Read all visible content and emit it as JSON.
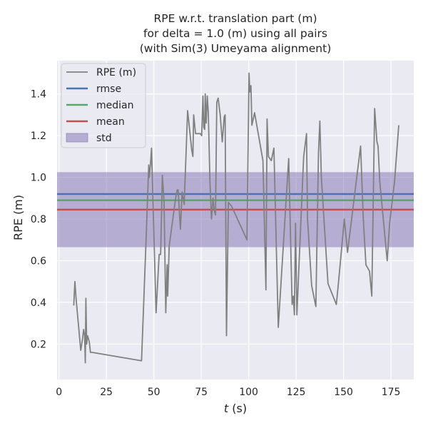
{
  "chart_data": {
    "type": "line",
    "title_lines": [
      "RPE w.r.t. translation part (m)",
      "for delta = 1.0 (m) using all pairs",
      "(with Sim(3) Umeyama alignment)"
    ],
    "xlabel_italic": "t",
    "xlabel_rest": " (s)",
    "ylabel": "RPE (m)",
    "xlim": [
      -1,
      187
    ],
    "ylim": [
      0.03,
      1.56
    ],
    "x_ticks": [
      0,
      25,
      50,
      75,
      100,
      125,
      150,
      175
    ],
    "y_ticks": [
      0.2,
      0.4,
      0.6,
      0.8,
      1.0,
      1.2,
      1.4
    ],
    "y_tick_labels": [
      "0.2",
      "0.4",
      "0.6",
      "0.8",
      "1.0",
      "1.2",
      "1.4"
    ],
    "grid": true,
    "legend_position": "top-left",
    "legend": [
      {
        "label": "RPE (m)",
        "color": "#808080",
        "kind": "line"
      },
      {
        "label": "rmse",
        "color": "#4c72b0",
        "kind": "line"
      },
      {
        "label": "median",
        "color": "#55a868",
        "kind": "line"
      },
      {
        "label": "mean",
        "color": "#c44e52",
        "kind": "line"
      },
      {
        "label": "std",
        "color": "#8172b2",
        "kind": "patch"
      }
    ],
    "stats": {
      "rmse": 0.92,
      "median": 0.89,
      "mean": 0.845,
      "std_band": [
        0.665,
        1.025
      ]
    },
    "series": [
      {
        "name": "RPE (m)",
        "color": "#808080",
        "x": [
          7.8,
          8.4,
          9.0,
          11.5,
          12.5,
          13.0,
          13.5,
          13.9,
          14.2,
          14.6,
          15.1,
          16.0,
          16.6,
          17.5,
          43.5,
          46.0,
          47.3,
          47.6,
          48.2,
          48.8,
          51.2,
          52.8,
          53.6,
          54.5,
          55.4,
          56.3,
          57.0,
          57.3,
          58.1,
          61.5,
          62.3,
          62.8,
          64.0,
          64.9,
          66.0,
          67.8,
          70.0,
          70.6,
          71.0,
          72.0,
          74.5,
          75.2,
          75.9,
          76.3,
          76.8,
          77.1,
          77.6,
          78.2,
          78.7,
          79.6,
          80.4,
          81.2,
          81.9,
          82.5,
          83.2,
          83.9,
          85.0,
          86.1,
          87.1,
          87.6,
          88.3,
          89.3,
          91.1,
          99.1,
          100.2,
          100.6,
          101.2,
          101.7,
          103.1,
          107.5,
          109.1,
          109.7,
          110.4,
          111.9,
          113.3,
          115.6,
          121.1,
          122.9,
          123.5,
          124.1,
          124.7,
          125.4,
          126.2,
          129.0,
          130.5,
          131.0,
          133.2,
          135.4,
          136.8,
          137.5,
          138.3,
          141.8,
          146.2,
          147.5,
          150.4,
          152.1,
          159.0,
          160.4,
          161.8,
          163.7,
          164.9,
          166.4,
          167.6,
          168.2,
          169.1,
          173.0,
          174.3,
          176.9,
          179.1
        ],
        "values": [
          0.385,
          0.5,
          0.42,
          0.17,
          0.23,
          0.27,
          0.24,
          0.11,
          0.42,
          0.2,
          0.24,
          0.21,
          0.16,
          0.16,
          0.12,
          0.72,
          1.06,
          1.0,
          1.06,
          1.14,
          0.35,
          0.63,
          0.63,
          1.01,
          0.88,
          0.35,
          0.58,
          0.43,
          0.67,
          0.9,
          0.94,
          0.94,
          0.75,
          0.93,
          0.87,
          1.32,
          1.13,
          1.1,
          1.3,
          1.21,
          1.21,
          1.2,
          1.39,
          1.24,
          1.23,
          1.4,
          1.26,
          1.39,
          1.31,
          0.97,
          0.8,
          0.9,
          0.84,
          0.82,
          1.36,
          1.38,
          1.3,
          1.17,
          1.29,
          1.3,
          0.24,
          0.88,
          0.86,
          0.7,
          1.5,
          1.41,
          1.44,
          1.25,
          1.31,
          1.08,
          0.46,
          1.28,
          1.1,
          1.08,
          1.14,
          0.28,
          1.09,
          0.39,
          0.43,
          0.34,
          0.78,
          0.34,
          0.51,
          1.1,
          1.21,
          0.8,
          0.48,
          0.38,
          1.12,
          1.27,
          1.0,
          0.49,
          0.39,
          0.51,
          0.8,
          0.64,
          1.15,
          0.8,
          0.58,
          0.55,
          0.43,
          1.33,
          1.17,
          1.15,
          0.98,
          0.6,
          0.78,
          0.98,
          1.25
        ]
      }
    ]
  }
}
